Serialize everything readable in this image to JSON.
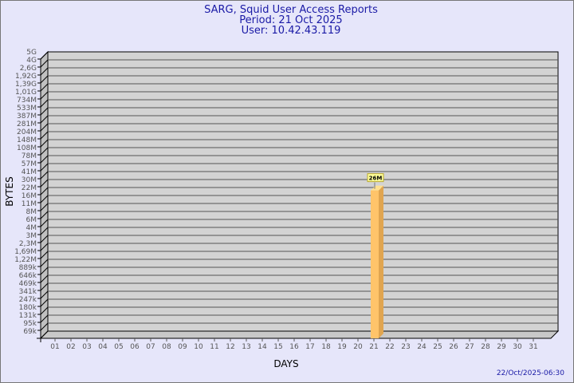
{
  "chart_data": {
    "type": "bar",
    "title": "SARG, Squid User Access Reports",
    "subtitle_lines": [
      "Period: 21 Oct 2025",
      "User: 10.42.43.119"
    ],
    "xlabel": "DAYS",
    "ylabel": "BYTES",
    "y_scale": "log",
    "y_tick_labels": [
      "5G",
      "4G",
      "2,6G",
      "1,92G",
      "1,39G",
      "1,01G",
      "734M",
      "533M",
      "387M",
      "281M",
      "204M",
      "148M",
      "108M",
      "78M",
      "57M",
      "41M",
      "30M",
      "22M",
      "16M",
      "11M",
      "8M",
      "6M",
      "4M",
      "3M",
      "2,3M",
      "1,69M",
      "1,22M",
      "889k",
      "646k",
      "469k",
      "341k",
      "247k",
      "180k",
      "131k",
      "95k",
      "69k"
    ],
    "categories": [
      "01",
      "02",
      "03",
      "04",
      "05",
      "06",
      "07",
      "08",
      "09",
      "10",
      "11",
      "12",
      "13",
      "14",
      "15",
      "16",
      "17",
      "18",
      "19",
      "20",
      "21",
      "22",
      "23",
      "24",
      "25",
      "26",
      "27",
      "28",
      "29",
      "30",
      "31"
    ],
    "values": [
      null,
      null,
      null,
      null,
      null,
      null,
      null,
      null,
      null,
      null,
      null,
      null,
      null,
      null,
      null,
      null,
      null,
      null,
      null,
      null,
      26000000,
      null,
      null,
      null,
      null,
      null,
      null,
      null,
      null,
      null,
      null
    ],
    "data_labels": {
      "21": "26M"
    },
    "grid": true,
    "colors": {
      "bar": "#ffc46a",
      "bar_side": "#e0a550",
      "bar_top": "#ffe090",
      "plot_bg": "#d3d3d3",
      "grid": "#555555",
      "title": "#1a1aa6",
      "label_bg": "#ffff99"
    }
  },
  "footer": {
    "timestamp": "22/Oct/2025-06:30"
  }
}
